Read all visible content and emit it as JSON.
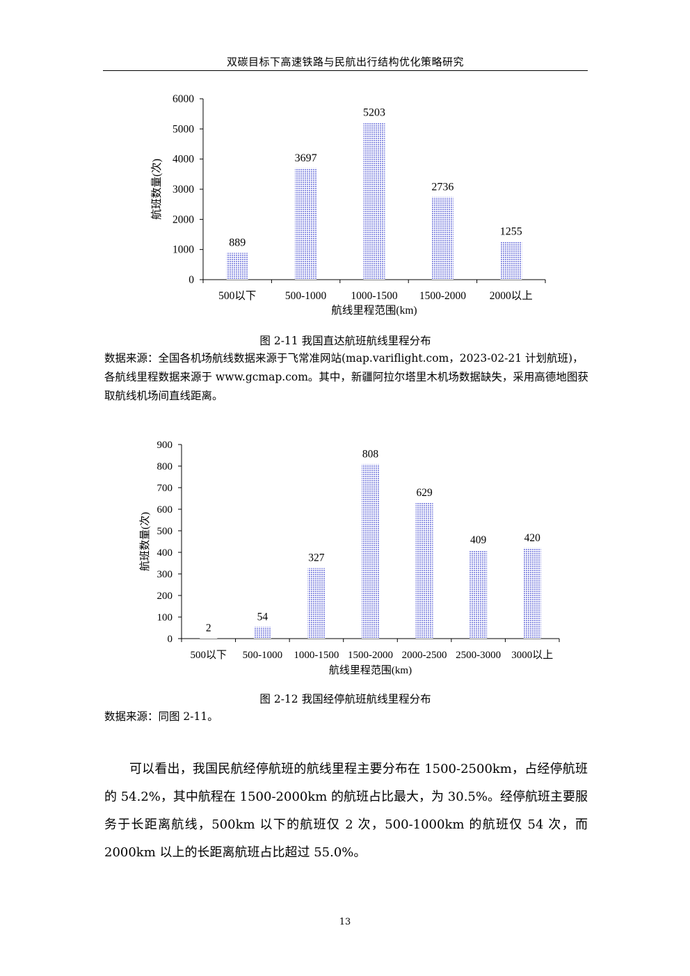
{
  "header": {
    "title": "双碳目标下高速铁路与民航出行结构优化策略研究"
  },
  "figure1": {
    "caption": "图 2-11  我国直达航班航线里程分布",
    "source": "数据来源：全国各机场航线数据来源于飞常准网站(map.variflight.com，2023-02-21 计划航班)，各航线里程数据来源于  www.gcmap.com。其中，新疆阿拉尔塔里木机场数据缺失，采用高德地图获取航线机场间直线距离。"
  },
  "figure2": {
    "caption": "图 2-12  我国经停航班航线里程分布",
    "source": "数据来源：同图 2-11。"
  },
  "chart_data": [
    {
      "type": "bar",
      "title": "",
      "xlabel": "航线里程范围(km)",
      "ylabel": "航班数量(次)",
      "categories": [
        "500以下",
        "500-1000",
        "1000-1500",
        "1500-2000",
        "2000以上"
      ],
      "values": [
        889,
        3697,
        5203,
        2736,
        1255
      ],
      "data_labels": [
        "889",
        "3697",
        "5203",
        "2736",
        "1255"
      ],
      "ylim": [
        0,
        6000
      ],
      "yticks": [
        0,
        1000,
        2000,
        3000,
        4000,
        5000,
        6000
      ],
      "grid": false,
      "bar_color": "#8f93e3"
    },
    {
      "type": "bar",
      "title": "",
      "xlabel": "航线里程范围(km)",
      "ylabel": "航班数量(次)",
      "categories": [
        "500以下",
        "500-1000",
        "1000-1500",
        "1500-2000",
        "2000-2500",
        "2500-3000",
        "3000以上"
      ],
      "values": [
        2,
        54,
        327,
        808,
        629,
        409,
        420
      ],
      "data_labels": [
        "2",
        "54",
        "327",
        "808",
        "629",
        "409",
        "420"
      ],
      "ylim": [
        0,
        900
      ],
      "yticks": [
        0,
        100,
        200,
        300,
        400,
        500,
        600,
        700,
        800,
        900
      ],
      "grid": false,
      "bar_color": "#8f93e3"
    }
  ],
  "body": {
    "paragraph": "可以看出，我国民航经停航班的航线里程主要分布在 1500-2500km，占经停航班的 54.2%，其中航程在 1500-2000km 的航班占比最大，为 30.5%。经停航班主要服务于长距离航线，500km 以下的航班仅 2 次，500-1000km 的航班仅 54 次，而 2000km 以上的长距离航班占比超过 55.0%。"
  },
  "page_number": "13"
}
